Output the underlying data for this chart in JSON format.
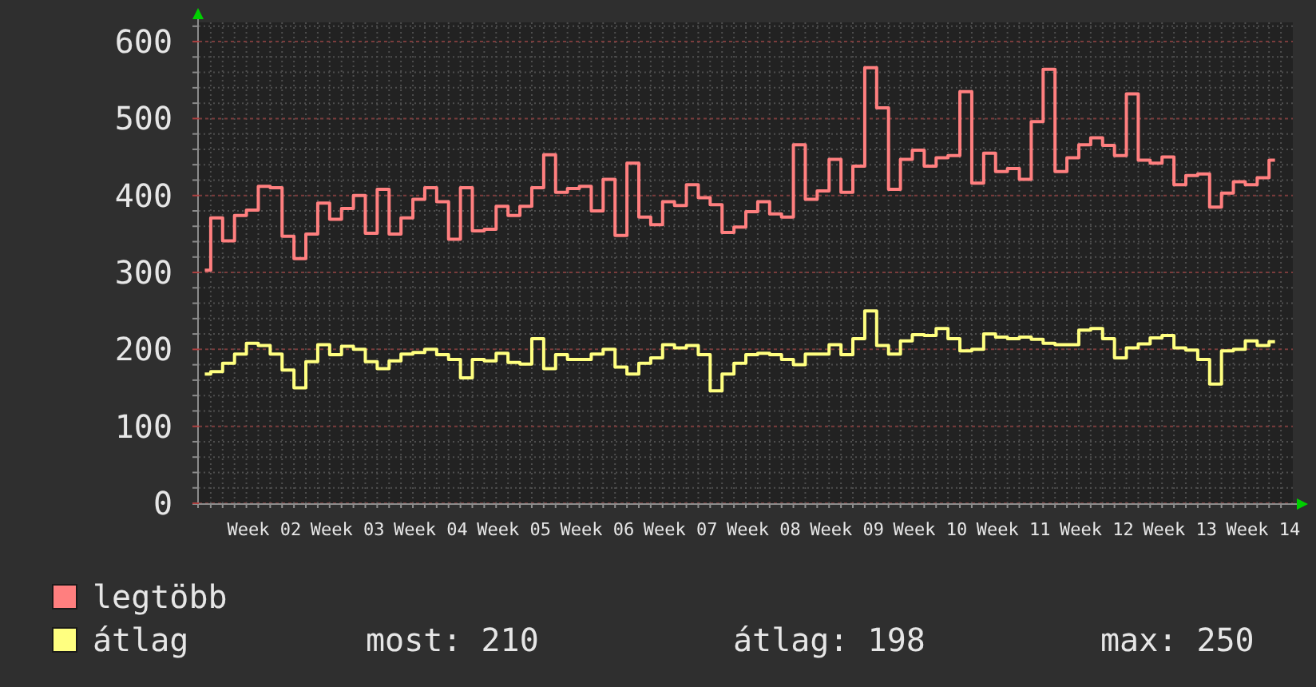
{
  "chart_data": {
    "type": "step",
    "categories": [
      null,
      null,
      null,
      null,
      null,
      "Week 02",
      null,
      null,
      null,
      null,
      null,
      null,
      "Week 03",
      null,
      null,
      null,
      null,
      null,
      null,
      "Week 04",
      null,
      null,
      null,
      null,
      null,
      null,
      "Week 05",
      null,
      null,
      null,
      null,
      null,
      null,
      "Week 06",
      null,
      null,
      null,
      null,
      null,
      null,
      "Week 07",
      null,
      null,
      null,
      null,
      null,
      null,
      "Week 08",
      null,
      null,
      null,
      null,
      null,
      null,
      "Week 09",
      null,
      null,
      null,
      null,
      null,
      null,
      "Week 10",
      null,
      null,
      null,
      null,
      null,
      null,
      "Week 11",
      null,
      null,
      null,
      null,
      null,
      null,
      "Week 12",
      null,
      null,
      null,
      null,
      null,
      null,
      "Week 13",
      null,
      null,
      null,
      null,
      null,
      null,
      "Week 14",
      null,
      null
    ],
    "series": [
      {
        "name": "legtöbb",
        "color": "#ff7f7f",
        "values": [
          303,
          371,
          341,
          374,
          381,
          412,
          410,
          347,
          318,
          350,
          390,
          369,
          383,
          400,
          351,
          408,
          350,
          371,
          395,
          410,
          392,
          343,
          410,
          354,
          356,
          386,
          374,
          386,
          410,
          453,
          404,
          409,
          412,
          380,
          421,
          348,
          442,
          372,
          362,
          392,
          387,
          414,
          397,
          388,
          352,
          359,
          379,
          392,
          376,
          372,
          466,
          395,
          406,
          447,
          404,
          438,
          566,
          514,
          408,
          447,
          459,
          438,
          449,
          452,
          535,
          416,
          455,
          431,
          435,
          421,
          496,
          564,
          431,
          449,
          466,
          475,
          465,
          452,
          532,
          446,
          442,
          450,
          414,
          426,
          428,
          385,
          403,
          418,
          414,
          423,
          446,
          null
        ]
      },
      {
        "name": "átlag",
        "color": "#ffff80",
        "values": [
          168,
          171,
          182,
          194,
          208,
          205,
          194,
          173,
          150,
          184,
          206,
          193,
          204,
          200,
          184,
          175,
          185,
          194,
          196,
          200,
          193,
          187,
          163,
          187,
          185,
          195,
          183,
          181,
          214,
          175,
          193,
          187,
          187,
          194,
          200,
          177,
          168,
          182,
          189,
          206,
          202,
          205,
          193,
          146,
          168,
          182,
          193,
          195,
          193,
          187,
          180,
          194,
          194,
          206,
          193,
          214,
          250,
          205,
          194,
          211,
          219,
          218,
          227,
          214,
          198,
          200,
          220,
          216,
          214,
          216,
          213,
          208,
          206,
          206,
          225,
          227,
          214,
          189,
          202,
          207,
          215,
          218,
          202,
          199,
          187,
          155,
          198,
          200,
          211,
          205,
          210,
          null
        ]
      }
    ],
    "ylim": [
      0,
      625
    ],
    "yticks": [
      0,
      {
        "value": 20,
        "label": null
      },
      {
        "value": 40,
        "label": null
      },
      {
        "value": 60,
        "label": null
      },
      {
        "value": 80,
        "label": null
      },
      100,
      {
        "value": 120,
        "label": null
      },
      {
        "value": 140,
        "label": null
      },
      {
        "value": 160,
        "label": null
      },
      {
        "value": 180,
        "label": null
      },
      200,
      {
        "value": 220,
        "label": null
      },
      {
        "value": 240,
        "label": null
      },
      {
        "value": 260,
        "label": null
      },
      {
        "value": 280,
        "label": null
      },
      300,
      {
        "value": 320,
        "label": null
      },
      {
        "value": 340,
        "label": null
      },
      {
        "value": 360,
        "label": null
      },
      {
        "value": 380,
        "label": null
      },
      400,
      {
        "value": 420,
        "label": null
      },
      {
        "value": 440,
        "label": null
      },
      {
        "value": 460,
        "label": null
      },
      {
        "value": 480,
        "label": null
      },
      500,
      {
        "value": 520,
        "label": null
      },
      {
        "value": 540,
        "label": null
      },
      {
        "value": 560,
        "label": null
      },
      {
        "value": 580,
        "label": null
      },
      600,
      {
        "value": 620,
        "label": null
      }
    ],
    "grid": true,
    "legend": "bottom left",
    "annotations": [
      "most: 210",
      "átlag: 198",
      "max: 250"
    ]
  }
}
